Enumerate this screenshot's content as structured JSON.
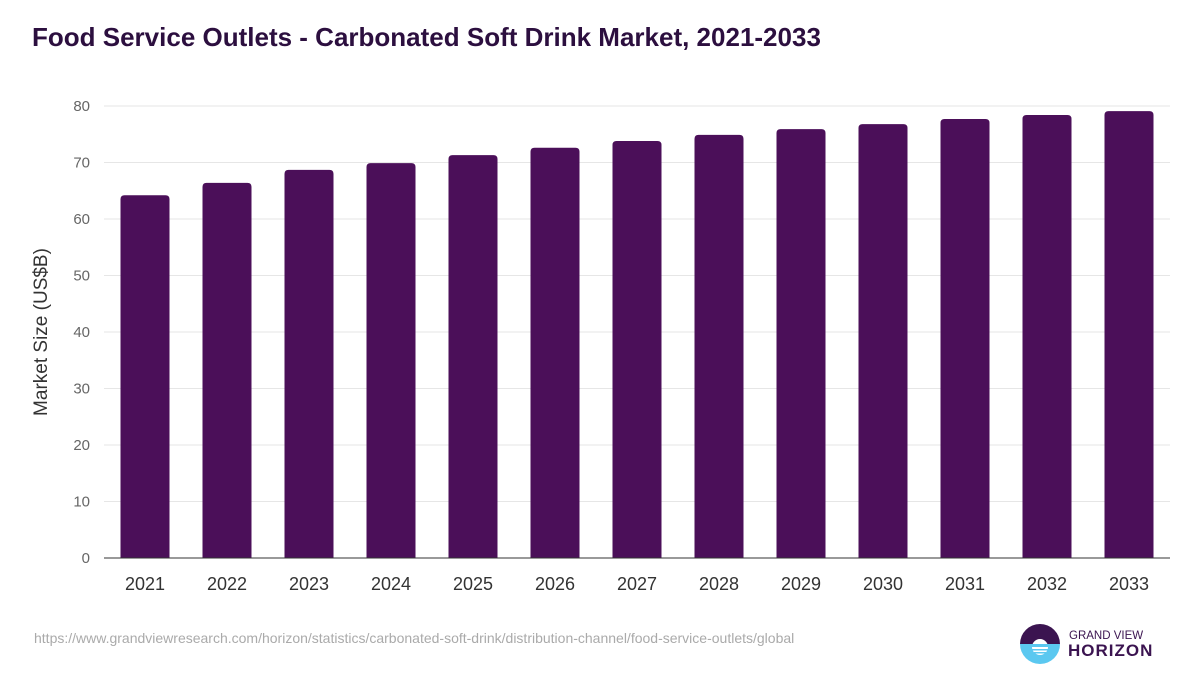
{
  "chart_data": {
    "type": "bar",
    "title": "Food Service Outlets - Carbonated Soft Drink Market, 2021-2033",
    "xlabel": "",
    "ylabel": "Market Size (US$B)",
    "ylim": [
      0,
      80
    ],
    "yticks": [
      0,
      10,
      20,
      30,
      40,
      50,
      60,
      70,
      80
    ],
    "grid": true,
    "categories": [
      "2021",
      "2022",
      "2023",
      "2024",
      "2025",
      "2026",
      "2027",
      "2028",
      "2029",
      "2030",
      "2031",
      "2032",
      "2033"
    ],
    "values": [
      64.2,
      66.4,
      68.7,
      69.9,
      71.3,
      72.6,
      73.8,
      74.9,
      75.9,
      76.8,
      77.7,
      78.4,
      79.1
    ],
    "bar_color": "#4b0f59"
  },
  "footer": {
    "source_url": "https://www.grandviewresearch.com/horizon/statistics/carbonated-soft-drink/distribution-channel/food-service-outlets/global"
  },
  "logo": {
    "line1": "GRAND VIEW",
    "line2": "HORIZON"
  }
}
